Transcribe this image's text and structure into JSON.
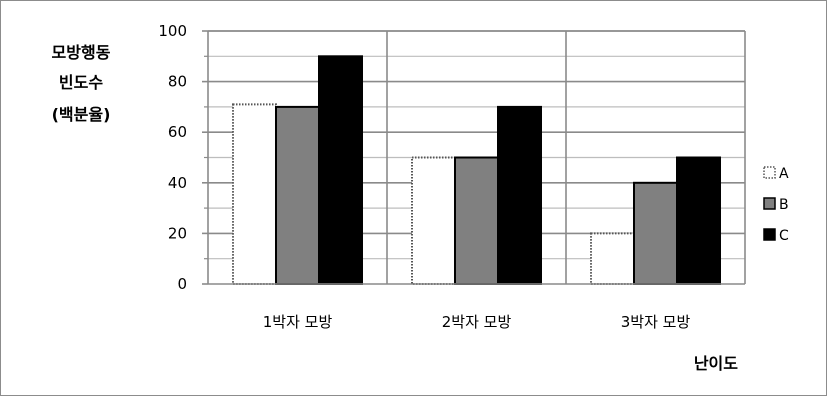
{
  "chart_data": {
    "type": "bar",
    "title": "",
    "ylabel_lines": [
      "모방행동",
      "빈도수",
      "(백분율)"
    ],
    "xlabel": "난이도",
    "categories": [
      "1박자 모방",
      "2박자 모방",
      "3박자 모방"
    ],
    "series": [
      {
        "name": "A",
        "values": [
          71,
          50,
          20
        ],
        "color": "#ffffff",
        "stroke": "#000000",
        "style": "dotted"
      },
      {
        "name": "B",
        "values": [
          70,
          50,
          40
        ],
        "color": "#808080",
        "stroke": "#000000",
        "style": "solid"
      },
      {
        "name": "C",
        "values": [
          90,
          70,
          50
        ],
        "color": "#000000",
        "stroke": "#000000",
        "style": "solid"
      }
    ],
    "ylim": [
      0,
      100
    ],
    "yticks": [
      0,
      20,
      40,
      60,
      80,
      100
    ],
    "grid": true,
    "legend_position": "right"
  }
}
